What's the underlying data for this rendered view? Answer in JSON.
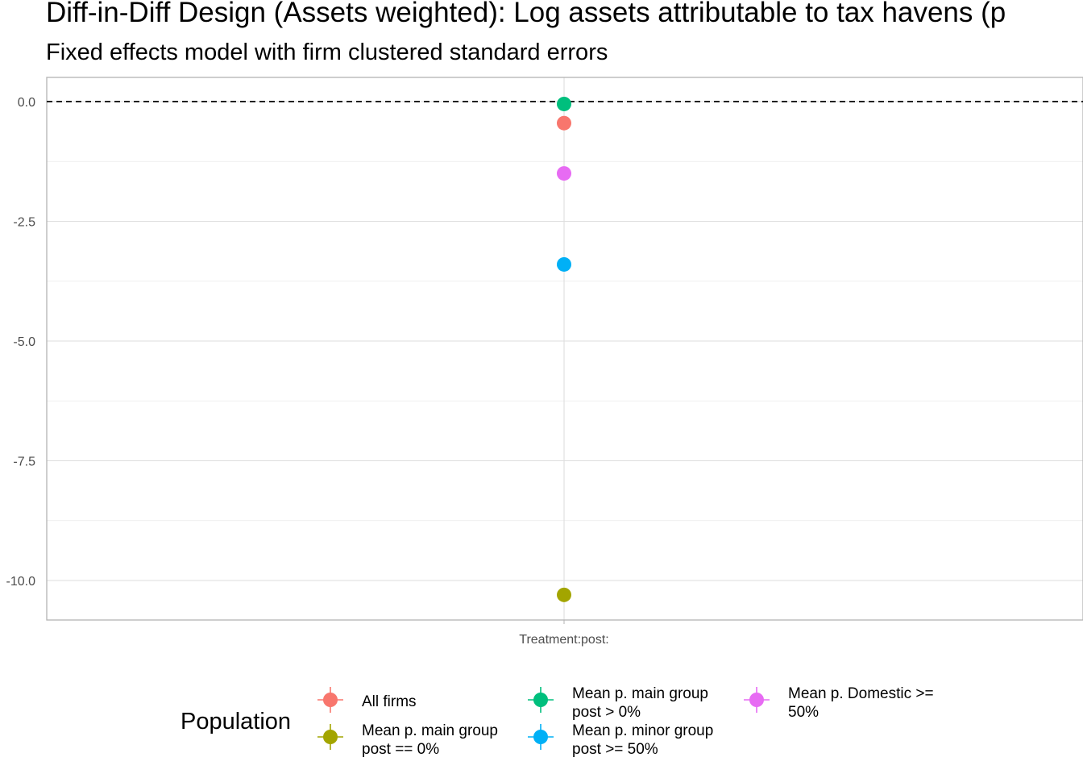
{
  "chart_data": {
    "type": "scatter",
    "title": "Diff-in-Diff Design (Assets weighted): Log assets attributable to tax havens (p",
    "subtitle": "Fixed effects model with firm clustered standard errors",
    "xlabel": "",
    "ylabel": "",
    "categories": [
      "Treatment:post:"
    ],
    "ylim": [
      -11.0,
      0.1
    ],
    "yticks": [
      "0.0",
      "-2.5",
      "-5.0",
      "-7.5",
      "-10.0"
    ],
    "ytick_values": [
      0,
      -2.5,
      -5,
      -7.5,
      -10
    ],
    "reference_line": 0,
    "grid": true,
    "legend_position": "bottom",
    "legend_title": "Population",
    "series": [
      {
        "name": "All firms",
        "color": "#F8766D",
        "values": [
          -0.45
        ]
      },
      {
        "name": "Mean p. main group post == 0%",
        "color": "#A3A500",
        "values": [
          -10.3
        ]
      },
      {
        "name": "Mean p. main group post > 0%",
        "color": "#00BF7D",
        "values": [
          -0.05
        ]
      },
      {
        "name": "Mean p. minor group post >= 50%",
        "color": "#00B0F6",
        "values": [
          -3.4
        ]
      },
      {
        "name": "Mean p. Domestic >= 50%",
        "color": "#E76BF3",
        "values": [
          -1.5
        ]
      }
    ],
    "legend_lines": [
      [
        "All firms"
      ],
      [
        "Mean p. main group",
        "post == 0%"
      ],
      [
        "Mean p. main group",
        "post > 0%"
      ],
      [
        "Mean p. minor group",
        "post >= 50%"
      ],
      [
        "Mean p. Domestic >=",
        "50%"
      ]
    ]
  }
}
